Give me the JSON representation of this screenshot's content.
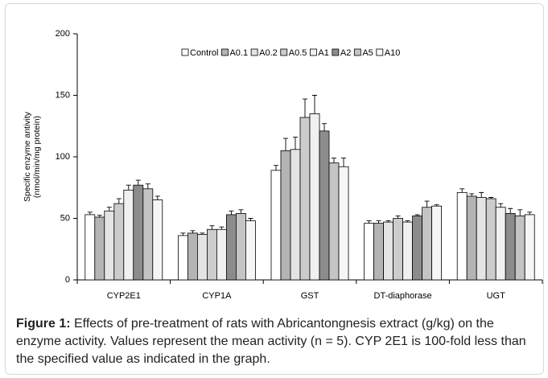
{
  "chart_data": {
    "type": "bar",
    "ylabel": [
      "Specific enzyme antivity",
      "(nmol/min/mg protein)"
    ],
    "categories": [
      "CYP2E1",
      "CYP1A",
      "GST",
      "DT-diaphorase",
      "UGT"
    ],
    "series": [
      {
        "name": "Control",
        "color": "#ffffff",
        "values": [
          53,
          36,
          89,
          46,
          71
        ],
        "errors": [
          2,
          2,
          4,
          2,
          3
        ]
      },
      {
        "name": "A0.1",
        "color": "#b4b4b4",
        "values": [
          51,
          38,
          105,
          46,
          68
        ],
        "errors": [
          1.5,
          2,
          10,
          2,
          2
        ]
      },
      {
        "name": "A0.2",
        "color": "#e4e4e4",
        "values": [
          56,
          37,
          106,
          47,
          67
        ],
        "errors": [
          3,
          1,
          10,
          1,
          4
        ]
      },
      {
        "name": "A0.5",
        "color": "#cccccc",
        "values": [
          62,
          41,
          132,
          50,
          66
        ],
        "errors": [
          4,
          3,
          15,
          2,
          1
        ]
      },
      {
        "name": "A1",
        "color": "#f0f0f0",
        "values": [
          73,
          41,
          135,
          47,
          59
        ],
        "errors": [
          4,
          2,
          15,
          1,
          3
        ]
      },
      {
        "name": "A2",
        "color": "#8c8c8c",
        "values": [
          77,
          53,
          121,
          52,
          54
        ],
        "errors": [
          4,
          3,
          6,
          1,
          4
        ]
      },
      {
        "name": "A5",
        "color": "#c4c4c4",
        "values": [
          74,
          54,
          95,
          59,
          52
        ],
        "errors": [
          4,
          3,
          4,
          5,
          5
        ]
      },
      {
        "name": "A10",
        "color": "#f6f6f6",
        "values": [
          65,
          48,
          92,
          60,
          53
        ],
        "errors": [
          3,
          2,
          7,
          1,
          2
        ]
      }
    ],
    "ylim": [
      0,
      200
    ],
    "yticks": [
      0,
      50,
      100,
      150,
      200
    ]
  },
  "caption": {
    "label": "Figure 1:",
    "text": " Effects of pre-treatment of rats with Abricantongnesis extract (g/kg) on the enzyme activity.  Values represent the mean activity (n = 5).  CYP 2E1 is 100-fold less than the specified value as indicated in the graph."
  }
}
